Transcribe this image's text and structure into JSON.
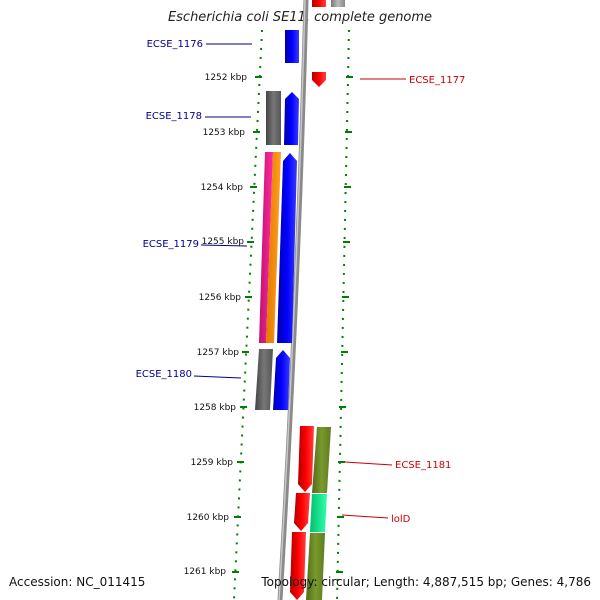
{
  "title": "Escherichia coli SE11, complete genome",
  "accession": "Accession: NC_011415",
  "summary": "Topology: circular; Length: 4,887,515 bp; Genes: 4,786",
  "tick_labels": [
    "1252 kbp",
    "1253 kbp",
    "1254 kbp",
    "1255 kbp",
    "1256 kbp",
    "1257 kbp",
    "1258 kbp",
    "1259 kbp",
    "1260 kbp",
    "1261 kbp"
  ],
  "gene_labels": {
    "ecse_1176": "ECSE_1176",
    "ecse_1177": "ECSE_1177",
    "ecse_1178": "ECSE_1178",
    "ecse_1179": "ECSE_1179",
    "ecse_1180": "ECSE_1180",
    "ecse_1181": "ECSE_1181",
    "lold": "lolD"
  },
  "colors": {
    "reverse_label": "#00008b",
    "forward_label": "#cc0000",
    "cds_blue": "#0000ff",
    "cds_red": "#ff0000",
    "gray_feature": "#666666",
    "magenta_feature": "#ff1493",
    "orange_feature": "#ff8c00",
    "olive_feature": "#6b8e23",
    "teal_feature": "#00e08a",
    "tick_green": "#008000",
    "backbone": "#808080"
  }
}
